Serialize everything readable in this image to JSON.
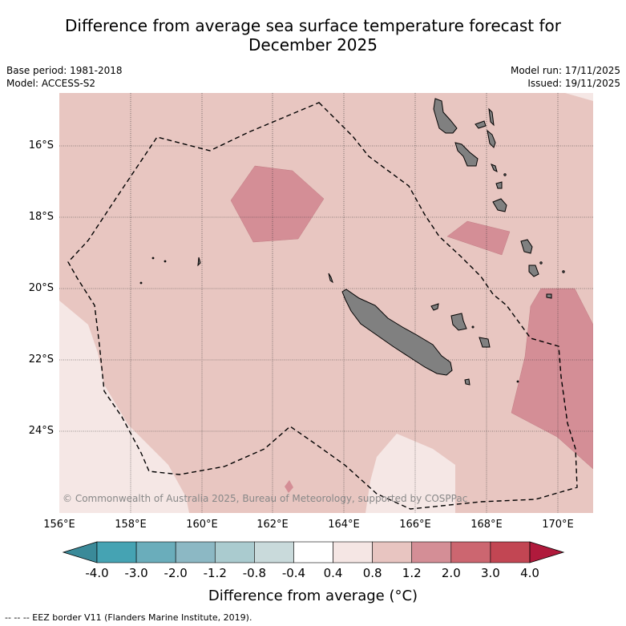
{
  "title_line1": "Difference from average sea surface temperature forecast for",
  "title_line2": "December 2025",
  "base_period": "Base period: 1981-2018",
  "model": "Model: ACCESS-S2",
  "model_run": "Model run: 17/11/2025",
  "issued": "Issued: 19/11/2025",
  "lat_labels": [
    "16°S",
    "18°S",
    "20°S",
    "22°S",
    "24°S"
  ],
  "lon_labels": [
    "156°E",
    "158°E",
    "160°E",
    "162°E",
    "164°E",
    "166°E",
    "168°E",
    "170°E"
  ],
  "copyright": "© Commonwealth of Australia 2025, Bureau of Meteorology, supported by COSPPac",
  "colorbar": {
    "ticks": [
      "-4.0",
      "-3.0",
      "-2.0",
      "-1.2",
      "-0.8",
      "-0.4",
      "0.4",
      "0.8",
      "1.2",
      "2.0",
      "3.0",
      "4.0"
    ],
    "colors": [
      "#3a8a99",
      "#45a3b3",
      "#6aadbb",
      "#8cb8c4",
      "#aacbcf",
      "#c9dadb",
      "#ffffff",
      "#f5e6e4",
      "#e8c5c1",
      "#d48e96",
      "#cc6670",
      "#c24653",
      "#b01a3c"
    ],
    "label": "Difference from average (°C)"
  },
  "footer": "--  --  -- EEZ border V11 (Flanders Marine Institute, 2019)."
}
